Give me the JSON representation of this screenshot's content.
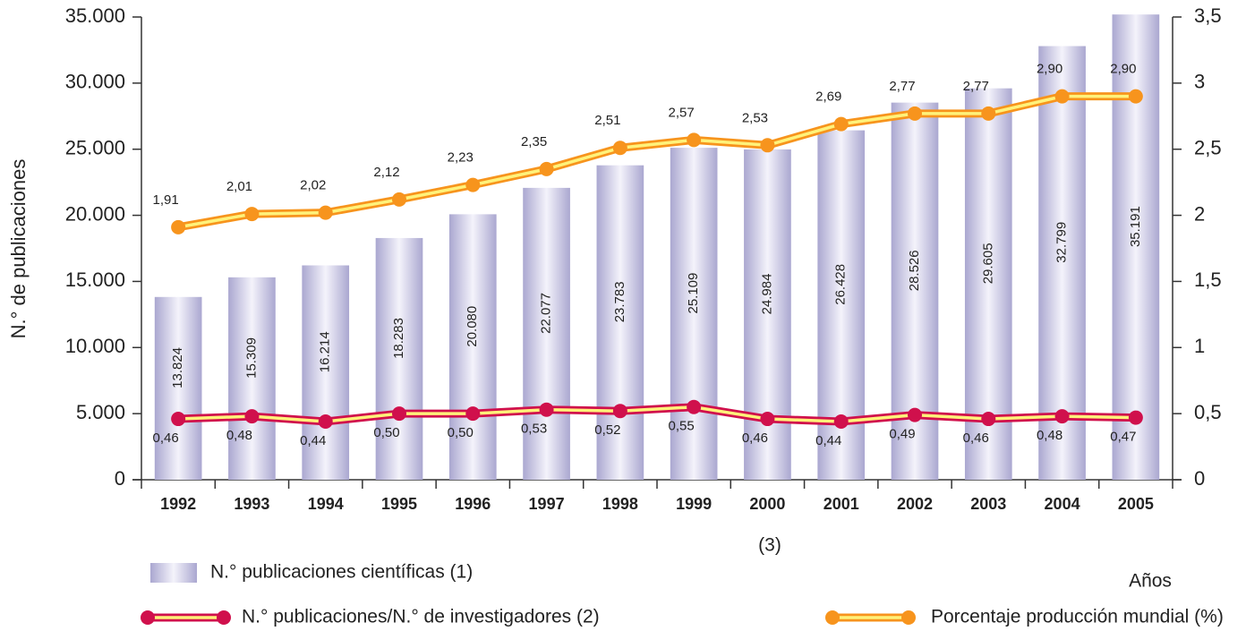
{
  "chart_data": {
    "type": "bar",
    "y_label": "N.° de publicaciones",
    "x_label": "Años",
    "note": "(3)",
    "categories": [
      "1992",
      "1993",
      "1994",
      "1995",
      "1996",
      "1997",
      "1998",
      "1999",
      "2000",
      "2001",
      "2002",
      "2003",
      "2004",
      "2005"
    ],
    "series": [
      {
        "name": "N.° publicaciones científicas (1)",
        "type": "bar",
        "color": "#aaa7d0",
        "values": [
          13824,
          15309,
          16214,
          18283,
          20080,
          22077,
          23783,
          25109,
          24984,
          26428,
          28526,
          29605,
          32799,
          35191
        ],
        "value_labels": [
          "13.824",
          "15.309",
          "16.214",
          "18.283",
          "20.080",
          "22.077",
          "23.783",
          "25.109",
          "24.984",
          "26.428",
          "28.526",
          "29.605",
          "32.799",
          "35.191"
        ]
      },
      {
        "name": "N.° publicaciones/N.° de investigadores (2)",
        "type": "line",
        "axis": "y2",
        "color": "#d0104c",
        "values": [
          0.46,
          0.48,
          0.44,
          0.5,
          0.5,
          0.53,
          0.52,
          0.55,
          0.46,
          0.44,
          0.49,
          0.46,
          0.48,
          0.47
        ],
        "value_labels": [
          "0,46",
          "0,48",
          "0,44",
          "0,50",
          "0,50",
          "0,53",
          "0,52",
          "0,55",
          "0,46",
          "0,44",
          "0,49",
          "0,46",
          "0,48",
          "0,47"
        ]
      },
      {
        "name": "Porcentaje producción mundial (%)",
        "type": "line",
        "axis": "y2",
        "color": "#f7941d",
        "values": [
          1.91,
          2.01,
          2.02,
          2.12,
          2.23,
          2.35,
          2.51,
          2.57,
          2.53,
          2.69,
          2.77,
          2.77,
          2.9,
          2.9
        ],
        "value_labels": [
          "1,91",
          "2,01",
          "2,02",
          "2,12",
          "2,23",
          "2,35",
          "2,51",
          "2,57",
          "2,53",
          "2,69",
          "2,77",
          "2,77",
          "2,90",
          "2,90"
        ]
      }
    ],
    "ylim": [
      0,
      35000
    ],
    "yticks": [
      0,
      {
        "value": 5000,
        "label": "5.000"
      },
      {
        "value": 10000,
        "label": "10.000"
      },
      {
        "value": 15000,
        "label": "15.000"
      },
      {
        "value": 20000,
        "label": "20.000"
      },
      {
        "value": 25000,
        "label": "25.000"
      },
      {
        "value": 30000,
        "label": "30.000"
      },
      {
        "value": 35000,
        "label": "35.000"
      }
    ],
    "y2lim": [
      0,
      3.5
    ],
    "y2ticks": [
      0,
      {
        "value": 0.5,
        "label": "0,5"
      },
      1,
      {
        "value": 1.5,
        "label": "1,5"
      },
      2,
      {
        "value": 2.5,
        "label": "2,5"
      },
      3,
      {
        "value": 3.5,
        "label": "3,5"
      }
    ],
    "grid": false
  }
}
